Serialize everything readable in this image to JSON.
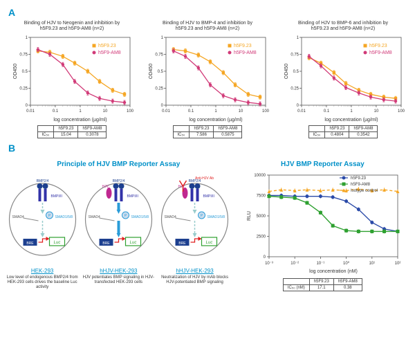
{
  "panelA": {
    "charts": [
      {
        "title1": "Binding of HJV to Neogenin and inhibition by",
        "title2": "h5F9.23 and h5F9-AM8 (n=2)",
        "ic": {
          "h5F9_23": "15.04",
          "h5F9_AM8": "0.3078"
        },
        "series": {
          "h5F9_23": {
            "color": "#f5a623",
            "marker": "square",
            "x": [
              0.02,
              0.06,
              0.2,
              0.6,
              2,
              6,
              20,
              60
            ],
            "y": [
              0.8,
              0.78,
              0.72,
              0.62,
              0.5,
              0.35,
              0.22,
              0.16
            ]
          },
          "h5F9_AM8": {
            "color": "#d13a78",
            "marker": "circle",
            "x": [
              0.02,
              0.06,
              0.2,
              0.6,
              2,
              6,
              20,
              60
            ],
            "y": [
              0.82,
              0.75,
              0.6,
              0.35,
              0.18,
              0.1,
              0.06,
              0.04
            ]
          }
        }
      },
      {
        "title1": "Binding of HJV to BMP-4 and inhibition by",
        "title2": "h5F9.23 and h5F9-AM8 (n=2)",
        "ic": {
          "h5F9_23": "7.586",
          "h5F9_AM8": "0.5875"
        },
        "series": {
          "h5F9_23": {
            "color": "#f5a623",
            "marker": "square",
            "x": [
              0.02,
              0.06,
              0.2,
              0.6,
              2,
              6,
              20,
              60
            ],
            "y": [
              0.82,
              0.8,
              0.74,
              0.64,
              0.48,
              0.3,
              0.16,
              0.12
            ]
          },
          "h5F9_AM8": {
            "color": "#d13a78",
            "marker": "circle",
            "x": [
              0.02,
              0.06,
              0.2,
              0.6,
              2,
              6,
              20,
              60
            ],
            "y": [
              0.8,
              0.72,
              0.55,
              0.3,
              0.14,
              0.08,
              0.04,
              0.02
            ]
          }
        }
      },
      {
        "title1": "Binding of HJV to BMP-6 and inhibition by",
        "title2": "h5F9.23 and h5F9-AM8 (n=2)",
        "ic": {
          "h5F9_23": "0.4804",
          "h5F9_AM8": "0.3542"
        },
        "series": {
          "h5F9_23": {
            "color": "#f5a623",
            "marker": "square",
            "x": [
              0.02,
              0.06,
              0.2,
              0.6,
              2,
              6,
              20,
              60
            ],
            "y": [
              0.7,
              0.62,
              0.48,
              0.32,
              0.22,
              0.16,
              0.12,
              0.1
            ]
          },
          "h5F9_AM8": {
            "color": "#d13a78",
            "marker": "circle",
            "x": [
              0.02,
              0.06,
              0.2,
              0.6,
              2,
              6,
              20,
              60
            ],
            "y": [
              0.72,
              0.58,
              0.4,
              0.26,
              0.18,
              0.12,
              0.08,
              0.06
            ]
          }
        }
      }
    ],
    "axis": {
      "ylabel": "OD450",
      "xlabel": "log concentration (µg/ml)",
      "ymin": 0,
      "ymax": 1,
      "xticks": [
        0.01,
        0.1,
        1,
        10,
        100
      ],
      "xticklabels": [
        "0.01",
        "0.1",
        "1",
        "10",
        "100"
      ]
    },
    "legend": {
      "h5F9_23": "h5F9.23",
      "h5F9_AM8": "h5F9-AM8"
    }
  },
  "panelB": {
    "principleTitle": "Principle of HJV BMP Reporter Assay",
    "assayTitle": "HJV BMP Reporter Assay",
    "cells": [
      {
        "label": "HEK-293",
        "caption": "Low level of endogenous BMP2/4 from HEK-293 cells drives the baseline Luc activity",
        "ab": false,
        "hjv": false
      },
      {
        "label": "hHJV-HEK-293",
        "caption": "HJV potentiates BMP signaling in HJV-transfected HEK-293 cells",
        "ab": false,
        "hjv": true
      },
      {
        "label": "hHJV-HEK-293",
        "caption": "Neutralization of HJV by mAb blocks HJV-potentiated BMP signaling",
        "ab": true,
        "hjv": true
      }
    ],
    "colors": {
      "bmp": "#1c3f8f",
      "bmpr": "#3232a8",
      "hjv": "#c02890",
      "ab": "#e02020",
      "smad": "#2a9cd8",
      "bre": "#1c3f8f",
      "luc": "#2ea030"
    },
    "assayChart": {
      "ylabel": "RLU",
      "xlabel": "log concentration (nM)",
      "yticks": [
        0,
        2500,
        5000,
        7500,
        10000
      ],
      "xticks": [
        0.001,
        0.01,
        0.1,
        1,
        10,
        100
      ],
      "xticklabels": [
        "10⁻³",
        "10⁻²",
        "10⁻¹",
        "10⁰",
        "10¹",
        "10²"
      ],
      "series": {
        "h5F9_23": {
          "label": "h5F9.23",
          "color": "#2a4aa8",
          "marker": "circle",
          "x": [
            0.001,
            0.003,
            0.01,
            0.03,
            0.1,
            0.3,
            1,
            3,
            10,
            30,
            100
          ],
          "y": [
            7500,
            7500,
            7400,
            7400,
            7400,
            7300,
            6800,
            5800,
            4200,
            3400,
            3100
          ]
        },
        "h5F9_AM8": {
          "label": "h5F9-AM8",
          "color": "#2ea030",
          "marker": "square",
          "x": [
            0.001,
            0.003,
            0.01,
            0.03,
            0.1,
            0.3,
            1,
            3,
            10,
            30,
            100
          ],
          "y": [
            7400,
            7300,
            7200,
            6600,
            5400,
            3800,
            3200,
            3100,
            3100,
            3100,
            3100
          ]
        },
        "iso": {
          "label": "Isotype control",
          "color": "#f5a623",
          "marker": "triangle",
          "dash": true,
          "x": [
            0.001,
            0.003,
            0.01,
            0.03,
            0.1,
            0.3,
            1,
            3,
            10,
            30,
            100
          ],
          "y": [
            8000,
            8200,
            8100,
            8200,
            8100,
            8200,
            8100,
            8300,
            8100,
            8200,
            8000
          ]
        }
      },
      "ic": {
        "h5F9_23": "17.1",
        "h5F9_AM8": "0.38"
      }
    }
  }
}
